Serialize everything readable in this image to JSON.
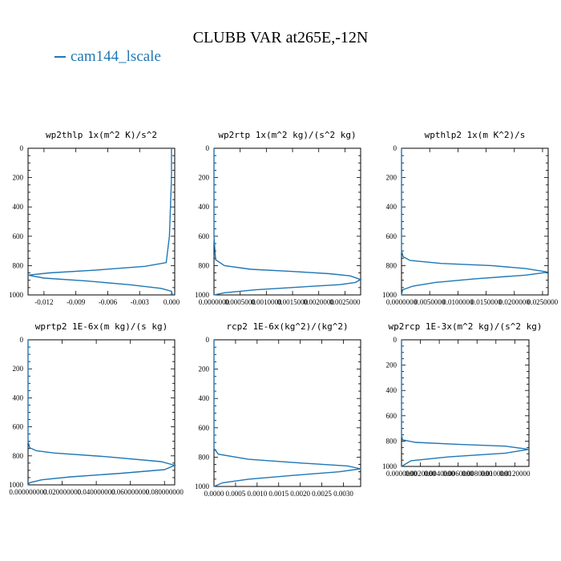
{
  "title": "CLUBB VAR at265E,-12N",
  "legend": {
    "label": "cam144_lscale",
    "color": "#1f77b4"
  },
  "chart_data": [
    {
      "type": "line",
      "title": "wp2thlp  1x(m^2 K)/s^2",
      "xlim": [
        -0.0135,
        0.0003
      ],
      "ylim": [
        1000,
        0
      ],
      "xticks": [
        -0.012,
        -0.009,
        -0.006,
        -0.003,
        0.0
      ],
      "xtick_labels": [
        "-0.012",
        "-0.009",
        "-0.006",
        "-0.003",
        "0.000"
      ],
      "yticks": [
        0,
        200,
        400,
        600,
        800,
        1000
      ],
      "series": [
        {
          "x": [
            0.0,
            0.0,
            -0.0002,
            -0.0005,
            -0.0025,
            -0.007,
            -0.0115,
            -0.0135,
            -0.012,
            -0.008,
            -0.004,
            -0.001,
            0.0,
            0.0001
          ],
          "y": [
            0,
            200,
            600,
            780,
            805,
            830,
            850,
            865,
            885,
            905,
            930,
            955,
            975,
            1000
          ]
        }
      ]
    },
    {
      "type": "line",
      "title": "wp2rtp  1x(m^2 kg)/(s^2 kg)",
      "xlim": [
        0.0,
        0.0028
      ],
      "ylim": [
        1000,
        0
      ],
      "xticks": [
        0.0,
        0.0005,
        0.001,
        0.0015,
        0.002,
        0.0025
      ],
      "xtick_labels": [
        "0.0000000",
        "0.0005000",
        "0.0010000",
        "0.0015000",
        "0.0020000",
        "0.0025000"
      ],
      "yticks": [
        0,
        200,
        400,
        600,
        800,
        1000
      ],
      "series": [
        {
          "x": [
            0.0,
            0.0,
            3e-05,
            0.0002,
            0.0007,
            0.0015,
            0.0022,
            0.0026,
            0.0028,
            0.0027,
            0.0024,
            0.0017,
            0.0008,
            0.0002,
            0.0
          ],
          "y": [
            0,
            600,
            760,
            800,
            825,
            840,
            855,
            870,
            895,
            915,
            930,
            945,
            965,
            985,
            1000
          ]
        }
      ]
    },
    {
      "type": "line",
      "title": "wpthlp2  1x(m K^2)/s",
      "xlim": [
        0.0,
        0.026
      ],
      "ylim": [
        1000,
        0
      ],
      "xticks": [
        0.0,
        0.005,
        0.01,
        0.015,
        0.02,
        0.025
      ],
      "xtick_labels": [
        "0.0000000",
        "0.0050000",
        "0.0100000",
        "0.0150000",
        "0.0200000",
        "0.0250000"
      ],
      "yticks": [
        0,
        200,
        400,
        600,
        800,
        1000
      ],
      "series": [
        {
          "x": [
            0.0,
            0.0,
            0.0003,
            0.0015,
            0.007,
            0.016,
            0.022,
            0.026,
            0.022,
            0.013,
            0.006,
            0.002,
            0.0002,
            0.0
          ],
          "y": [
            0,
            700,
            740,
            765,
            785,
            800,
            820,
            845,
            865,
            890,
            915,
            940,
            965,
            1000
          ]
        }
      ]
    },
    {
      "type": "line",
      "title": "wprtp2  1E-6x(m kg)/(s kg)",
      "xlim": [
        0.0,
        0.086
      ],
      "ylim": [
        1000,
        0
      ],
      "xticks": [
        0.0,
        0.02,
        0.04,
        0.06,
        0.08
      ],
      "xtick_labels": [
        "0.000000000",
        "0.020000000",
        "0.040000000",
        "0.060000000",
        "0.080000000"
      ],
      "yticks": [
        0,
        200,
        400,
        600,
        800,
        1000
      ],
      "series": [
        {
          "x": [
            0.0,
            0.0,
            0.001,
            0.005,
            0.015,
            0.045,
            0.078,
            0.086,
            0.08,
            0.055,
            0.025,
            0.008,
            0.001,
            0.0
          ],
          "y": [
            0,
            700,
            745,
            765,
            780,
            805,
            840,
            865,
            895,
            920,
            945,
            965,
            985,
            1000
          ]
        }
      ]
    },
    {
      "type": "line",
      "title": "rcp2  1E-6x(kg^2)/(kg^2)",
      "xlim": [
        0.0,
        0.0034
      ],
      "ylim": [
        1000,
        0
      ],
      "xticks": [
        0.0,
        0.0005,
        0.001,
        0.0015,
        0.002,
        0.0025,
        0.003
      ],
      "xtick_labels": [
        "0.0000",
        "0.0005",
        "0.0010",
        "0.0015",
        "0.0020",
        "0.0025",
        "0.0030"
      ],
      "yticks": [
        0,
        200,
        400,
        600,
        800,
        1000
      ],
      "series": [
        {
          "x": [
            0.0,
            0.0,
            0.0001,
            0.0008,
            0.002,
            0.0031,
            0.0034,
            0.0029,
            0.0018,
            0.0008,
            0.0002,
            0.0
          ],
          "y": [
            0,
            740,
            780,
            815,
            840,
            860,
            880,
            900,
            925,
            950,
            975,
            1000
          ]
        }
      ]
    },
    {
      "type": "line",
      "title": "wp2rcp  1E-3x(m^2 kg)/(s^2 kg)",
      "xlim": [
        0.0,
        0.0135
      ],
      "ylim": [
        1000,
        0
      ],
      "xticks": [
        0.0,
        0.002,
        0.004,
        0.006,
        0.008,
        0.01,
        0.012
      ],
      "xtick_labels": [
        "0.0000000",
        "0.0020000",
        "0.0040000",
        "0.0060000",
        "0.0080000",
        "0.0100000",
        "0.0120000"
      ],
      "yticks": [
        0,
        200,
        400,
        600,
        800,
        1000
      ],
      "series": [
        {
          "x": [
            0.0,
            0.0,
            0.0001,
            0.0015,
            0.006,
            0.011,
            0.0135,
            0.011,
            0.005,
            0.001,
            0.0
          ],
          "y": [
            0,
            750,
            790,
            810,
            825,
            840,
            865,
            895,
            925,
            955,
            1000
          ]
        }
      ]
    }
  ]
}
